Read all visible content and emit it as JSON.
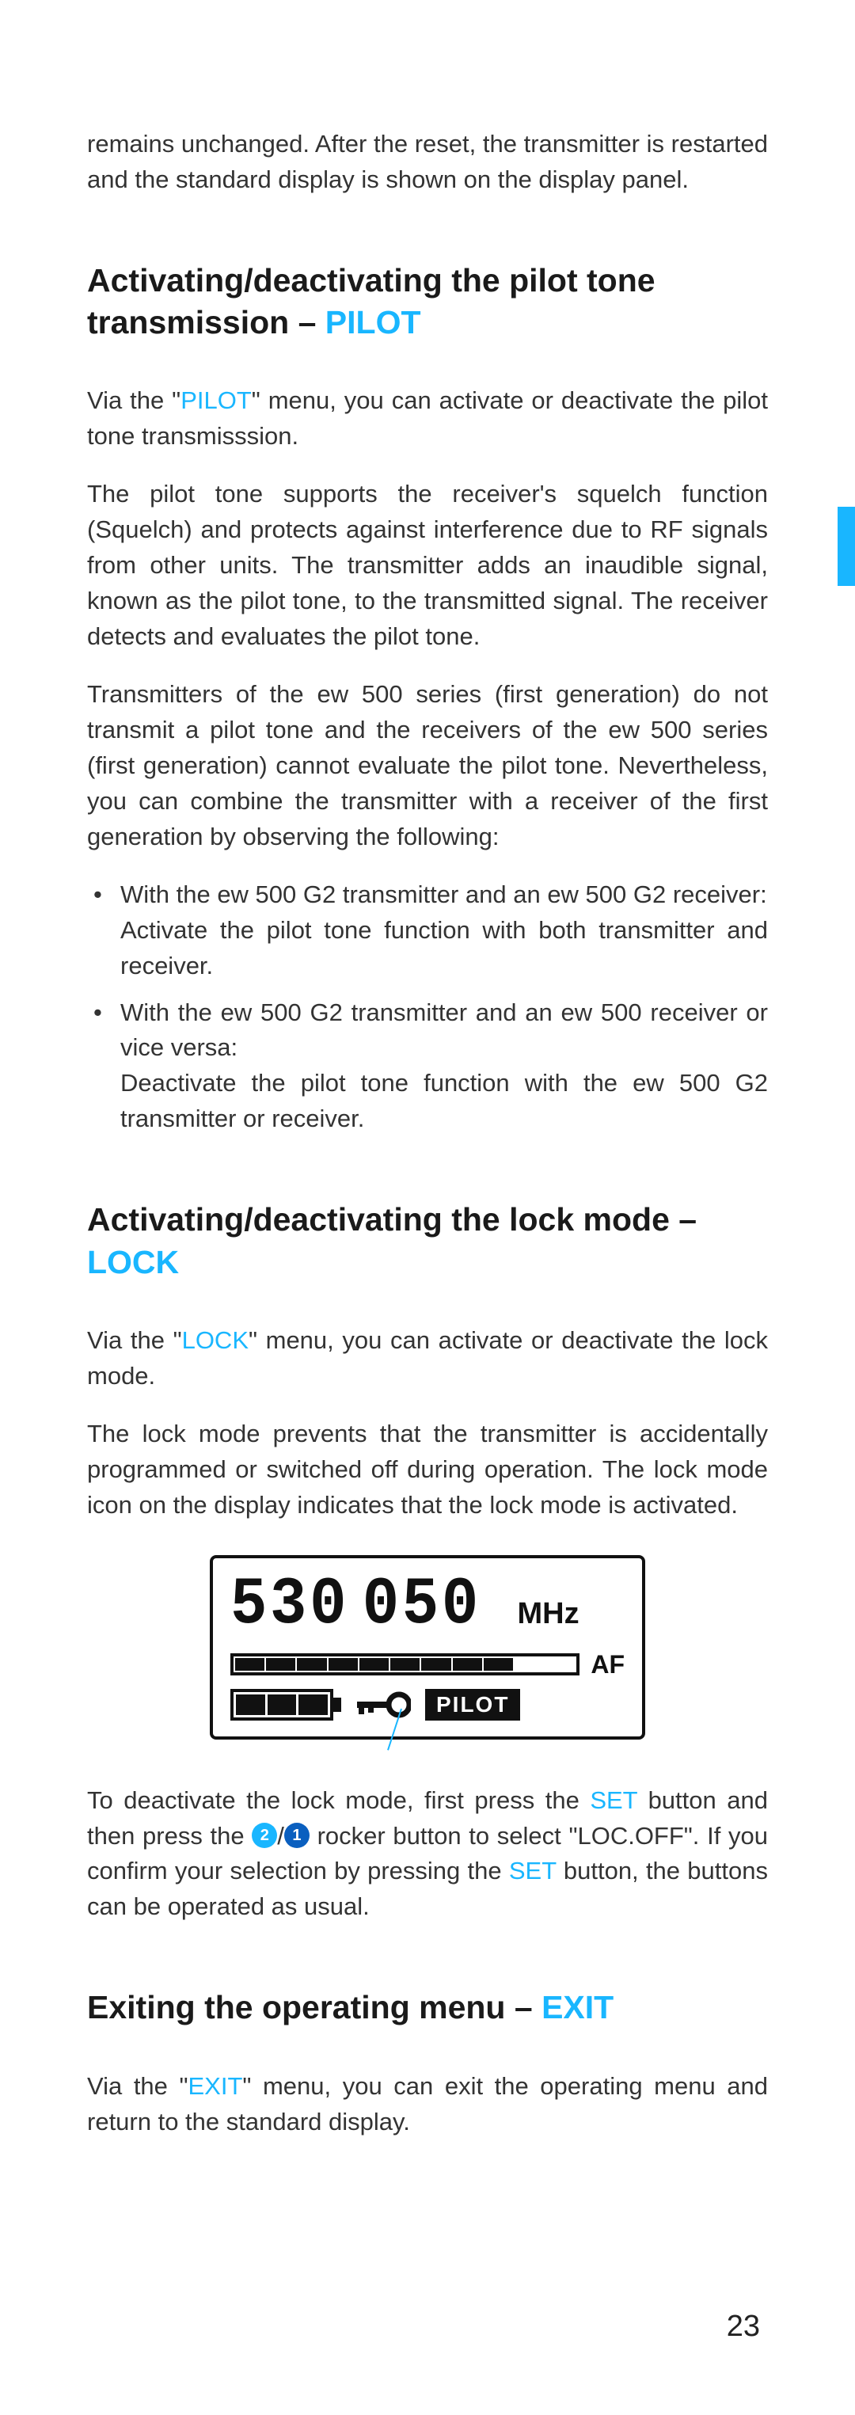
{
  "colors": {
    "accent": "#19b6ff",
    "text": "#333333",
    "heading": "#1a1a1a",
    "lcd_border": "#111111",
    "circle2": "#19b6ff",
    "circle1": "#0a5fbf",
    "page_bg": "#ffffff"
  },
  "intro": {
    "text": "remains unchanged. After the reset, the transmitter is restarted and the standard display is shown on the display panel."
  },
  "pilot": {
    "heading_prefix": "Activating/deactivating the pilot tone transmission – ",
    "heading_key": "PILOT",
    "p1_pre": "Via the \"",
    "p1_key": "PILOT",
    "p1_post": "\" menu, you can activate or deactivate the pilot tone transmisssion.",
    "p2": "The pilot tone supports the receiver's squelch function (Squelch) and protects against interference due to RF signals from other units. The transmitter adds an inaudible signal, known as the pilot tone, to the transmitted signal. The receiver detects and evaluates the pilot tone.",
    "p3": "Transmitters of the ew 500 series (first generation) do not transmit a pilot tone and the receivers of the ew 500 series (first generation) cannot evaluate the pilot tone. Nevertheless, you can combine the transmitter with a receiver of the first generation by observing the following:",
    "b1a": "With the ew 500 G2 transmitter and an ew 500 G2 receiver:",
    "b1b": "Activate the pilot tone function with both transmitter and receiver.",
    "b2a": "With the ew 500 G2 transmitter and an ew 500 receiver or vice versa:",
    "b2b": "Deactivate the pilot tone function with the ew 500 G2 transmitter or receiver."
  },
  "lock": {
    "heading_prefix": "Activating/deactivating the lock mode – ",
    "heading_key": "LOCK",
    "p1_pre": "Via the \"",
    "p1_key": "LOCK",
    "p1_post": "\" menu, you can activate or deactivate the lock mode.",
    "p2": "The lock mode prevents that the transmitter is accidentally programmed or switched off during operation. The lock mode icon      on the display indicates that the lock mode is activated.",
    "p3_a": "To deactivate the lock mode, first press the ",
    "p3_set1": "SET",
    "p3_b": " button and then press the ",
    "p3_c": "/",
    "p3_d": " rocker button to select \"LOC.OFF\". If you confirm your selection by pressing the ",
    "p3_set2": "SET",
    "p3_e": " button, the buttons can be operated as usual.",
    "circle2": "2",
    "circle1": "1"
  },
  "lcd": {
    "frequency_display": "530.050",
    "unit": "MHz",
    "af_label": "AF",
    "af_segments_total": 11,
    "af_segments_on": 9,
    "battery_cells": 3,
    "pilot_badge": "PILOT"
  },
  "exit": {
    "heading_prefix": "Exiting the operating menu – ",
    "heading_key": "EXIT",
    "p1_pre": "Via the \"",
    "p1_key": "EXIT",
    "p1_post": "\" menu, you can exit the operating menu and return to the standard display."
  },
  "page_number": "23"
}
